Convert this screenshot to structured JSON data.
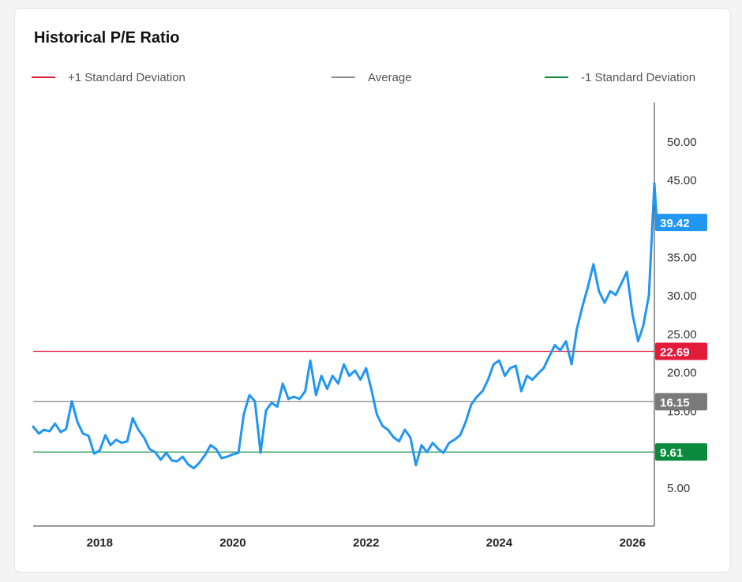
{
  "title": "Historical P/E Ratio",
  "legend": [
    {
      "label": "+1 Standard Deviation",
      "color": "#e31b3b"
    },
    {
      "label": "Average",
      "color": "#8a8a8a"
    },
    {
      "label": "-1 Standard Deviation",
      "color": "#0b8a3d"
    }
  ],
  "chart_data": {
    "type": "line",
    "title": "Historical P/E Ratio",
    "xlabel": "",
    "ylabel": "",
    "x_ticks": [
      "2018",
      "2020",
      "2022",
      "2024",
      "2026"
    ],
    "y_ticks": [
      "5.00",
      "15.00",
      "20.00",
      "25.00",
      "30.00",
      "35.00",
      "45.00",
      "50.00"
    ],
    "ylim": [
      0,
      55
    ],
    "xlim": [
      "2017-01",
      "2026-05"
    ],
    "grid": false,
    "legend_position": "top",
    "reference_lines": [
      {
        "name": "+1 Standard Deviation",
        "value": 22.69,
        "label": "22.69",
        "color": "#e31b3b"
      },
      {
        "name": "Average",
        "value": 16.15,
        "label": "16.15",
        "color": "#7a7a7a"
      },
      {
        "name": "-1 Standard Deviation",
        "value": 9.61,
        "label": "9.61",
        "color": "#0b8a3d"
      }
    ],
    "last_value_label": "39.42",
    "series": [
      {
        "color": "#2196f3",
        "points": [
          [
            "2017-01-01",
            12.9
          ],
          [
            "2017-02-01",
            12.0
          ],
          [
            "2017-03-01",
            12.5
          ],
          [
            "2017-04-01",
            12.3
          ],
          [
            "2017-05-01",
            13.3
          ],
          [
            "2017-06-01",
            12.2
          ],
          [
            "2017-07-01",
            12.6
          ],
          [
            "2017-08-01",
            16.2
          ],
          [
            "2017-09-01",
            13.5
          ],
          [
            "2017-10-01",
            12.0
          ],
          [
            "2017-11-01",
            11.7
          ],
          [
            "2017-12-01",
            9.4
          ],
          [
            "2018-01-01",
            9.8
          ],
          [
            "2018-02-01",
            11.8
          ],
          [
            "2018-03-01",
            10.5
          ],
          [
            "2018-04-01",
            11.2
          ],
          [
            "2018-05-01",
            10.8
          ],
          [
            "2018-06-01",
            11.0
          ],
          [
            "2018-07-01",
            14.0
          ],
          [
            "2018-08-01",
            12.5
          ],
          [
            "2018-09-01",
            11.5
          ],
          [
            "2018-10-01",
            10.0
          ],
          [
            "2018-11-01",
            9.6
          ],
          [
            "2018-12-01",
            8.6
          ],
          [
            "2019-01-01",
            9.5
          ],
          [
            "2019-02-01",
            8.5
          ],
          [
            "2019-03-01",
            8.4
          ],
          [
            "2019-04-01",
            9.0
          ],
          [
            "2019-05-01",
            8.0
          ],
          [
            "2019-06-01",
            7.5
          ],
          [
            "2019-07-01",
            8.2
          ],
          [
            "2019-08-01",
            9.2
          ],
          [
            "2019-09-01",
            10.5
          ],
          [
            "2019-10-01",
            10.0
          ],
          [
            "2019-11-01",
            8.8
          ],
          [
            "2019-12-01",
            9.0
          ],
          [
            "2020-01-01",
            9.3
          ],
          [
            "2020-02-01",
            9.5
          ],
          [
            "2020-03-01",
            14.5
          ],
          [
            "2020-04-01",
            17.0
          ],
          [
            "2020-05-01",
            16.2
          ],
          [
            "2020-06-01",
            9.5
          ],
          [
            "2020-07-01",
            15.0
          ],
          [
            "2020-08-01",
            16.0
          ],
          [
            "2020-09-01",
            15.5
          ],
          [
            "2020-10-01",
            18.5
          ],
          [
            "2020-11-01",
            16.5
          ],
          [
            "2020-12-01",
            16.8
          ],
          [
            "2021-01-01",
            16.5
          ],
          [
            "2021-02-01",
            17.5
          ],
          [
            "2021-03-01",
            21.5
          ],
          [
            "2021-04-01",
            17.0
          ],
          [
            "2021-05-01",
            19.5
          ],
          [
            "2021-06-01",
            17.8
          ],
          [
            "2021-07-01",
            19.5
          ],
          [
            "2021-08-01",
            18.5
          ],
          [
            "2021-09-01",
            21.0
          ],
          [
            "2021-10-01",
            19.5
          ],
          [
            "2021-11-01",
            20.2
          ],
          [
            "2021-12-01",
            19.0
          ],
          [
            "2022-01-01",
            20.5
          ],
          [
            "2022-02-01",
            17.5
          ],
          [
            "2022-03-01",
            14.5
          ],
          [
            "2022-04-01",
            13.0
          ],
          [
            "2022-05-01",
            12.5
          ],
          [
            "2022-06-01",
            11.5
          ],
          [
            "2022-07-01",
            11.0
          ],
          [
            "2022-08-01",
            12.5
          ],
          [
            "2022-09-01",
            11.5
          ],
          [
            "2022-10-01",
            7.9
          ],
          [
            "2022-11-01",
            10.5
          ],
          [
            "2022-12-01",
            9.6
          ],
          [
            "2023-01-01",
            10.8
          ],
          [
            "2023-02-01",
            10.0
          ],
          [
            "2023-03-01",
            9.5
          ],
          [
            "2023-04-01",
            10.8
          ],
          [
            "2023-05-01",
            11.2
          ],
          [
            "2023-06-01",
            11.8
          ],
          [
            "2023-07-01",
            13.5
          ],
          [
            "2023-08-01",
            15.8
          ],
          [
            "2023-09-01",
            16.8
          ],
          [
            "2023-10-01",
            17.5
          ],
          [
            "2023-11-01",
            19.0
          ],
          [
            "2023-12-01",
            21.0
          ],
          [
            "2024-01-01",
            21.5
          ],
          [
            "2024-02-01",
            19.5
          ],
          [
            "2024-03-01",
            20.5
          ],
          [
            "2024-04-01",
            20.8
          ],
          [
            "2024-05-01",
            17.5
          ],
          [
            "2024-06-01",
            19.5
          ],
          [
            "2024-07-01",
            19.0
          ],
          [
            "2024-08-01",
            19.8
          ],
          [
            "2024-09-01",
            20.5
          ],
          [
            "2024-10-01",
            22.0
          ],
          [
            "2024-11-01",
            23.5
          ],
          [
            "2024-12-01",
            22.8
          ],
          [
            "2025-01-01",
            24.0
          ],
          [
            "2025-02-01",
            21.0
          ],
          [
            "2025-03-01",
            25.5
          ],
          [
            "2025-04-01",
            28.5
          ],
          [
            "2025-05-01",
            31.0
          ],
          [
            "2025-06-01",
            34.0
          ],
          [
            "2025-07-01",
            30.5
          ],
          [
            "2025-08-01",
            29.0
          ],
          [
            "2025-09-01",
            30.5
          ],
          [
            "2025-10-01",
            30.0
          ],
          [
            "2025-11-01",
            31.5
          ],
          [
            "2025-12-01",
            33.0
          ],
          [
            "2026-01-01",
            27.5
          ],
          [
            "2026-02-01",
            24.0
          ],
          [
            "2026-03-01",
            26.0
          ],
          [
            "2026-04-01",
            30.0
          ],
          [
            "2026-05-01",
            44.5
          ],
          [
            "2026-05-15",
            39.42
          ]
        ]
      }
    ]
  }
}
